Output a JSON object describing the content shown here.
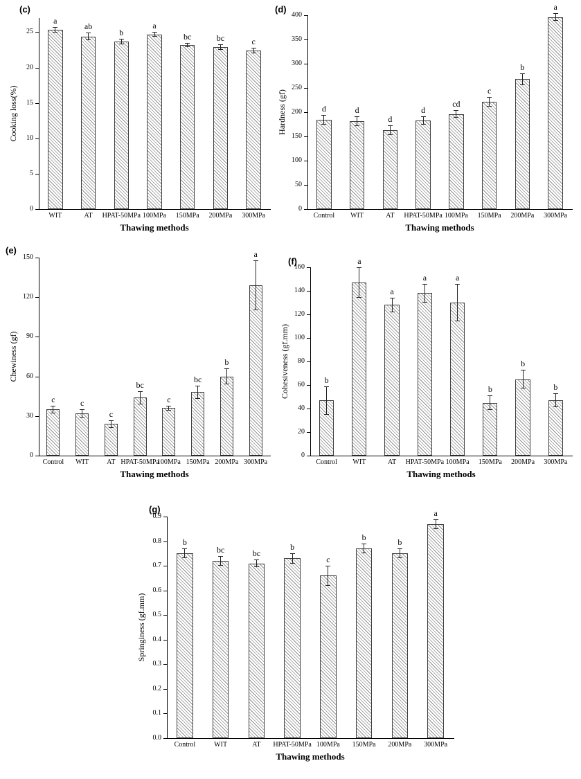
{
  "figure": {
    "title": "",
    "x_axis_title": "Thawing methods"
  },
  "chart_data": [
    {
      "id": "c",
      "panel_label": "(c)",
      "type": "bar",
      "ylabel": "Cooking loss(%)",
      "xlabel": "Thawing methods",
      "ylim": [
        0,
        27
      ],
      "grid": false,
      "legend": false,
      "yticks": [
        "0",
        "5",
        "10",
        "15",
        "20",
        "25"
      ],
      "categories": [
        "WIT",
        "AT",
        "HPAT-50MPa",
        "100MPa",
        "150MPa",
        "200MPa",
        "300MPa"
      ],
      "values": [
        25.3,
        24.4,
        23.7,
        24.7,
        23.2,
        22.9,
        22.4
      ],
      "errors": [
        0.4,
        0.5,
        0.4,
        0.3,
        0.3,
        0.4,
        0.4
      ],
      "sig_letters": [
        "a",
        "ab",
        "b",
        "a",
        "bc",
        "bc",
        "c"
      ]
    },
    {
      "id": "d",
      "panel_label": "(d)",
      "type": "bar",
      "ylabel": "Hardness (gf)",
      "xlabel": "Thawing methods",
      "ylim": [
        0,
        400
      ],
      "grid": false,
      "legend": false,
      "yticks": [
        "0",
        "50",
        "100",
        "150",
        "200",
        "250",
        "300",
        "350",
        "400"
      ],
      "categories": [
        "Control",
        "WIT",
        "AT",
        "HPAT-50MPa",
        "100MPa",
        "150MPa",
        "200MPa",
        "300MPa"
      ],
      "values": [
        185,
        181,
        163,
        183,
        196,
        221,
        268,
        396
      ],
      "errors": [
        10,
        10,
        10,
        8,
        8,
        10,
        12,
        8
      ],
      "sig_letters": [
        "d",
        "d",
        "d",
        "d",
        "cd",
        "c",
        "b",
        "a"
      ]
    },
    {
      "id": "e",
      "panel_label": "(e)",
      "type": "bar",
      "ylabel": "Chewiness (gf)",
      "xlabel": "Thawing methods",
      "ylim": [
        0,
        150
      ],
      "grid": false,
      "legend": false,
      "yticks": [
        "0",
        "30",
        "60",
        "90",
        "120",
        "150"
      ],
      "categories": [
        "Control",
        "WIT",
        "AT",
        "HPAT-50MPa",
        "100MPa",
        "150MPa",
        "200MPa",
        "300MPa"
      ],
      "values": [
        35,
        32,
        24,
        44,
        36,
        48,
        60,
        129
      ],
      "errors": [
        3,
        3,
        3,
        5,
        2,
        5,
        6,
        19
      ],
      "sig_letters": [
        "c",
        "c",
        "c",
        "bc",
        "c",
        "bc",
        "b",
        "a"
      ]
    },
    {
      "id": "f",
      "panel_label": "(f)",
      "type": "bar",
      "ylabel": "Cohesiveness (gf.mm)",
      "xlabel": "Thawing methods",
      "ylim": [
        0,
        160
      ],
      "grid": false,
      "legend": false,
      "yticks": [
        "0",
        "20",
        "40",
        "60",
        "80",
        "100",
        "120",
        "140",
        "160"
      ],
      "categories": [
        "Control",
        "WIT",
        "AT",
        "HPAT-50MPa",
        "100MPa",
        "150MPa",
        "200MPa",
        "300MPa"
      ],
      "values": [
        47,
        147,
        128,
        138,
        130,
        45,
        65,
        47
      ],
      "errors": [
        12,
        13,
        6,
        8,
        16,
        6,
        8,
        6
      ],
      "sig_letters": [
        "b",
        "a",
        "a",
        "a",
        "a",
        "b",
        "b",
        "b"
      ]
    },
    {
      "id": "g",
      "panel_label": "(g)",
      "type": "bar",
      "ylabel": "Springiness (gf.mm)",
      "xlabel": "Thawing methods",
      "ylim": [
        0,
        0.9
      ],
      "grid": false,
      "legend": false,
      "yticks": [
        "0.0",
        "0.1",
        "0.2",
        "0.3",
        "0.4",
        "0.5",
        "0.6",
        "0.7",
        "0.8",
        "0.9"
      ],
      "categories": [
        "Control",
        "WIT",
        "AT",
        "HPAT-50MPa",
        "100MPa",
        "150MPa",
        "200MPa",
        "300MPa"
      ],
      "values": [
        0.75,
        0.72,
        0.71,
        0.73,
        0.66,
        0.77,
        0.75,
        0.87
      ],
      "errors": [
        0.02,
        0.02,
        0.015,
        0.02,
        0.04,
        0.02,
        0.02,
        0.02
      ],
      "sig_letters": [
        "b",
        "bc",
        "bc",
        "b",
        "c",
        "b",
        "b",
        "a"
      ]
    }
  ]
}
